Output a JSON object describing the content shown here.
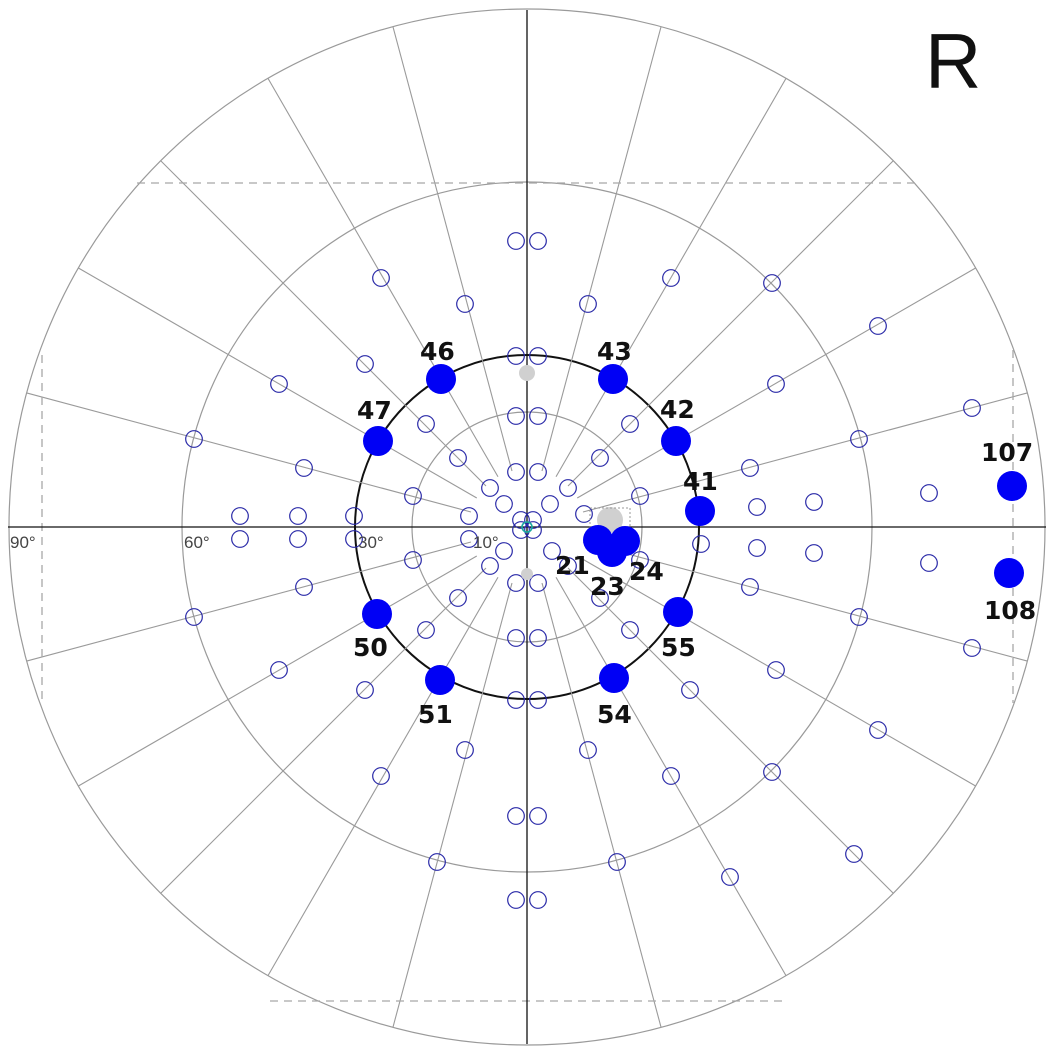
{
  "eye_label": "R",
  "degree_labels": [
    "90°",
    "60°",
    "30°",
    "10°"
  ],
  "colors": {
    "grid": "#9a9a9a",
    "axis": "#111111",
    "circle_30": "#111111",
    "dashed": "#a8a8a8",
    "test_point": "#2a2aa8",
    "highlight": "#0000f5",
    "blind_spot": "#d0d0d0"
  },
  "highlighted_points": [
    {
      "label": "46"
    },
    {
      "label": "43"
    },
    {
      "label": "47"
    },
    {
      "label": "42"
    },
    {
      "label": "41"
    },
    {
      "label": "107"
    },
    {
      "label": "108"
    },
    {
      "label": "21"
    },
    {
      "label": "23"
    },
    {
      "label": "24"
    },
    {
      "label": "50"
    },
    {
      "label": "55"
    },
    {
      "label": "51"
    },
    {
      "label": "54"
    }
  ]
}
